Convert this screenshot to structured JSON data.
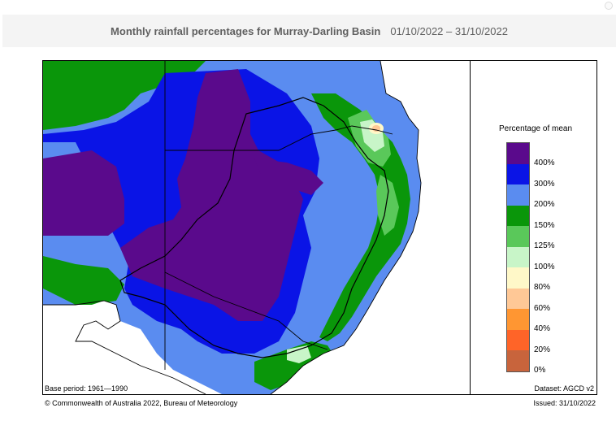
{
  "header": {
    "title": "Monthly rainfall percentages for Murray-Darling Basin",
    "dates": "01/10/2022 – 31/10/2022"
  },
  "legend": {
    "title": "Percentage of mean",
    "items": [
      {
        "label": "400%",
        "color": "#5a0a8c"
      },
      {
        "label": "300%",
        "color": "#0a14e6"
      },
      {
        "label": "200%",
        "color": "#5a8cf0"
      },
      {
        "label": "150%",
        "color": "#0a960a"
      },
      {
        "label": "125%",
        "color": "#5ac85a"
      },
      {
        "label": "100%",
        "color": "#c8f5c8"
      },
      {
        "label": "80%",
        "color": "#fff8c8"
      },
      {
        "label": "60%",
        "color": "#ffc896"
      },
      {
        "label": "40%",
        "color": "#ff9632"
      },
      {
        "label": "20%",
        "color": "#ff6428"
      },
      {
        "label": "0%",
        "color": "#c8643c"
      }
    ]
  },
  "footer": {
    "base_period": "Base period: 1961—1990",
    "dataset": "Dataset: AGCD v2",
    "copyright": "© Commonwealth of Australia 2022, Bureau of Meteorology",
    "issued": "Issued: 31/10/2022"
  }
}
